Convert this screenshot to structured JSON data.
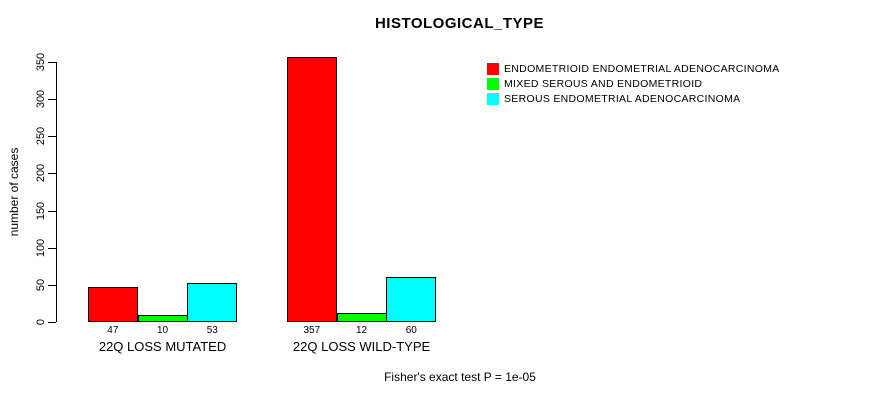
{
  "chart_data": {
    "type": "bar",
    "title": "HISTOLOGICAL_TYPE",
    "xlabel": "",
    "ylabel": "number of cases",
    "ylim": [
      0,
      350
    ],
    "yticks": [
      0,
      50,
      100,
      150,
      200,
      250,
      300,
      350
    ],
    "grid": false,
    "legend_position": "top-right-inside",
    "categories": [
      "22Q LOSS MUTATED",
      "22Q LOSS WILD-TYPE"
    ],
    "series": [
      {
        "name": "ENDOMETRIOID ENDOMETRIAL ADENOCARCINOMA",
        "color": "#ff0000",
        "values": [
          47,
          357
        ]
      },
      {
        "name": "MIXED SEROUS AND ENDOMETRIOID",
        "color": "#00ff00",
        "values": [
          10,
          12
        ]
      },
      {
        "name": "SEROUS ENDOMETRIAL ADENOCARCINOMA",
        "color": "#00ffff",
        "values": [
          53,
          60
        ]
      }
    ],
    "bar_value_labels_shown": true,
    "annotation": "Fisher's exact test P = 1e-05",
    "colors": {
      "background": "#ffffff",
      "axis": "#000000",
      "text": "#000000"
    }
  }
}
